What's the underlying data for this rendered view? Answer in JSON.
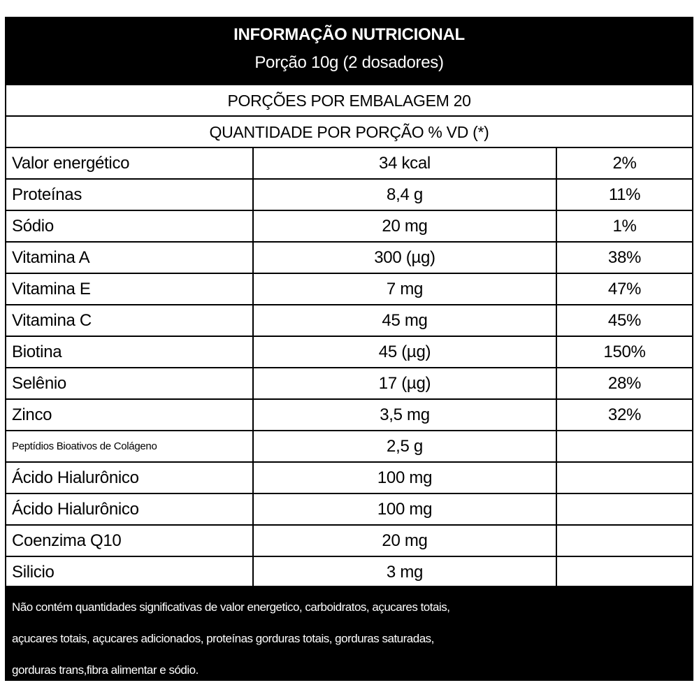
{
  "header": {
    "title": "INFORMAÇÃO NUTRICIONAL",
    "portion": "Porção 10g (2 dosadores)"
  },
  "servings": "PORÇÕES POR EMBALAGEM 20",
  "quantity_header": "QUANTIDADE POR PORÇÃO % VD (*)",
  "rows": [
    {
      "name": "Valor energético",
      "amount": "34 kcal",
      "vd": "2%"
    },
    {
      "name": "Proteínas",
      "amount": "8,4 g",
      "vd": "11%"
    },
    {
      "name": "Sódio",
      "amount": "20 mg",
      "vd": "1%"
    },
    {
      "name": "Vitamina A",
      "amount": "300 (µg)",
      "vd": "38%"
    },
    {
      "name": "Vitamina E",
      "amount": "7 mg",
      "vd": "47%"
    },
    {
      "name": "Vitamina C",
      "amount": "45 mg",
      "vd": "45%"
    },
    {
      "name": "Biotina",
      "amount": "45 (µg)",
      "vd": "150%"
    },
    {
      "name": "Selênio",
      "amount": "17 (µg)",
      "vd": "28%"
    },
    {
      "name": "Zinco",
      "amount": "3,5 mg",
      "vd": "32%"
    },
    {
      "name": "Peptídios Bioativos de Colágeno",
      "amount": "2,5 g",
      "vd": ""
    },
    {
      "name": "Ácido Hialurônico",
      "amount": "100 mg",
      "vd": ""
    },
    {
      "name": "Ácido Hialurônico",
      "amount": "100 mg",
      "vd": ""
    },
    {
      "name": "Coenzima Q10",
      "amount": "20 mg",
      "vd": ""
    },
    {
      "name": "Silicio",
      "amount": "3 mg",
      "vd": ""
    }
  ],
  "footer": {
    "lines": [
      "Não contém quantidades significativas de valor energetico, carboidratos, açucares totais,",
      "açucares totais, açucares adicionados, proteínas gorduras totais, gorduras saturadas,",
      "gorduras trans,fibra alimentar e sódio."
    ]
  }
}
